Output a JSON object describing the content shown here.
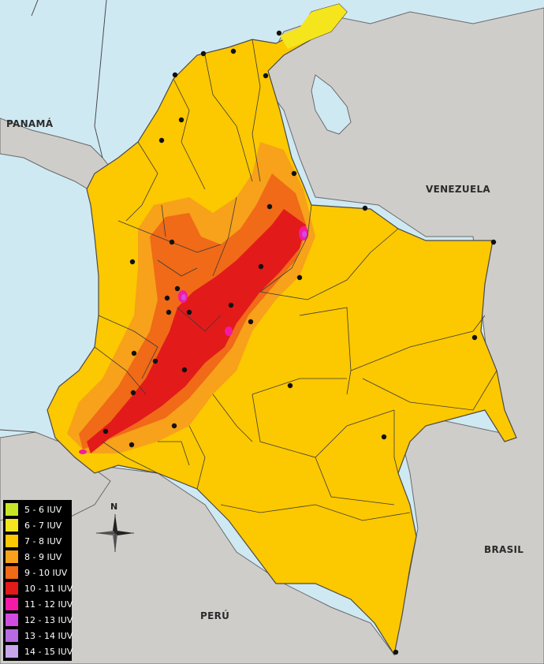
{
  "countries": {
    "panama": "PANAMÁ",
    "venezuela": "VENEZUELA",
    "brasil": "BRASIL",
    "peru": "PERÚ"
  },
  "legend": [
    {
      "label": "5 - 6 IUV",
      "color": "#c8e628"
    },
    {
      "label": "6 - 7 IUV",
      "color": "#f5e51c"
    },
    {
      "label": "7 - 8 IUV",
      "color": "#fcc800"
    },
    {
      "label": "8 - 9 IUV",
      "color": "#f7a21a"
    },
    {
      "label": "9 - 10 IUV",
      "color": "#f06a17"
    },
    {
      "label": "10 - 11 IUV",
      "color": "#e21a1a"
    },
    {
      "label": "11 - 12 IUV",
      "color": "#f21aa6"
    },
    {
      "label": "12 - 13 IUV",
      "color": "#d04ce0"
    },
    {
      "label": "13 - 14 IUV",
      "color": "#b66be3"
    },
    {
      "label": "14 - 15 IUV",
      "color": "#c8a6ee"
    }
  ],
  "compass": {
    "north_label": "N"
  },
  "colors": {
    "ocean": "#cfe9f3",
    "land": "#cfcdca",
    "country_border": "#4a4a4a",
    "department_border": "#3b3b3b",
    "city": "#111111"
  }
}
